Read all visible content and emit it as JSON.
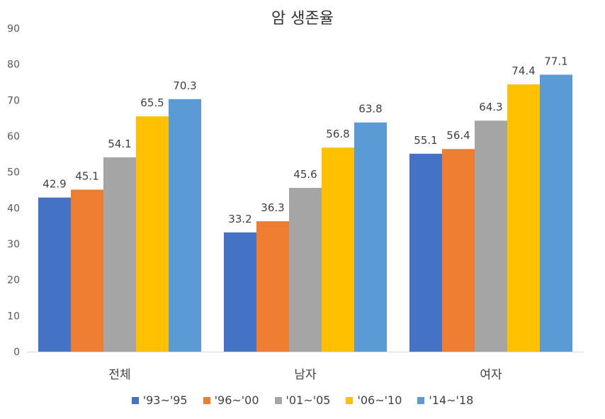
{
  "chart_data": {
    "type": "bar",
    "title": "암 생존율",
    "xlabel": "",
    "ylabel": "",
    "ylim": [
      0,
      90
    ],
    "yticks": [
      0,
      10,
      20,
      30,
      40,
      50,
      60,
      70,
      80,
      90
    ],
    "grid": false,
    "legend_position": "bottom",
    "categories": [
      "전체",
      "남자",
      "여자"
    ],
    "series": [
      {
        "name": "'93~'95",
        "color": "#4472C4",
        "values": [
          42.9,
          33.2,
          55.1
        ]
      },
      {
        "name": "'96~'00",
        "color": "#ED7D31",
        "values": [
          45.1,
          36.3,
          56.4
        ]
      },
      {
        "name": "'01~'05",
        "color": "#A5A5A5",
        "values": [
          54.1,
          45.6,
          64.3
        ]
      },
      {
        "name": "'06~'10",
        "color": "#FFC000",
        "values": [
          65.5,
          56.8,
          74.4
        ]
      },
      {
        "name": "'14~'18",
        "color": "#5B9BD5",
        "values": [
          70.3,
          63.8,
          77.1
        ]
      }
    ]
  }
}
